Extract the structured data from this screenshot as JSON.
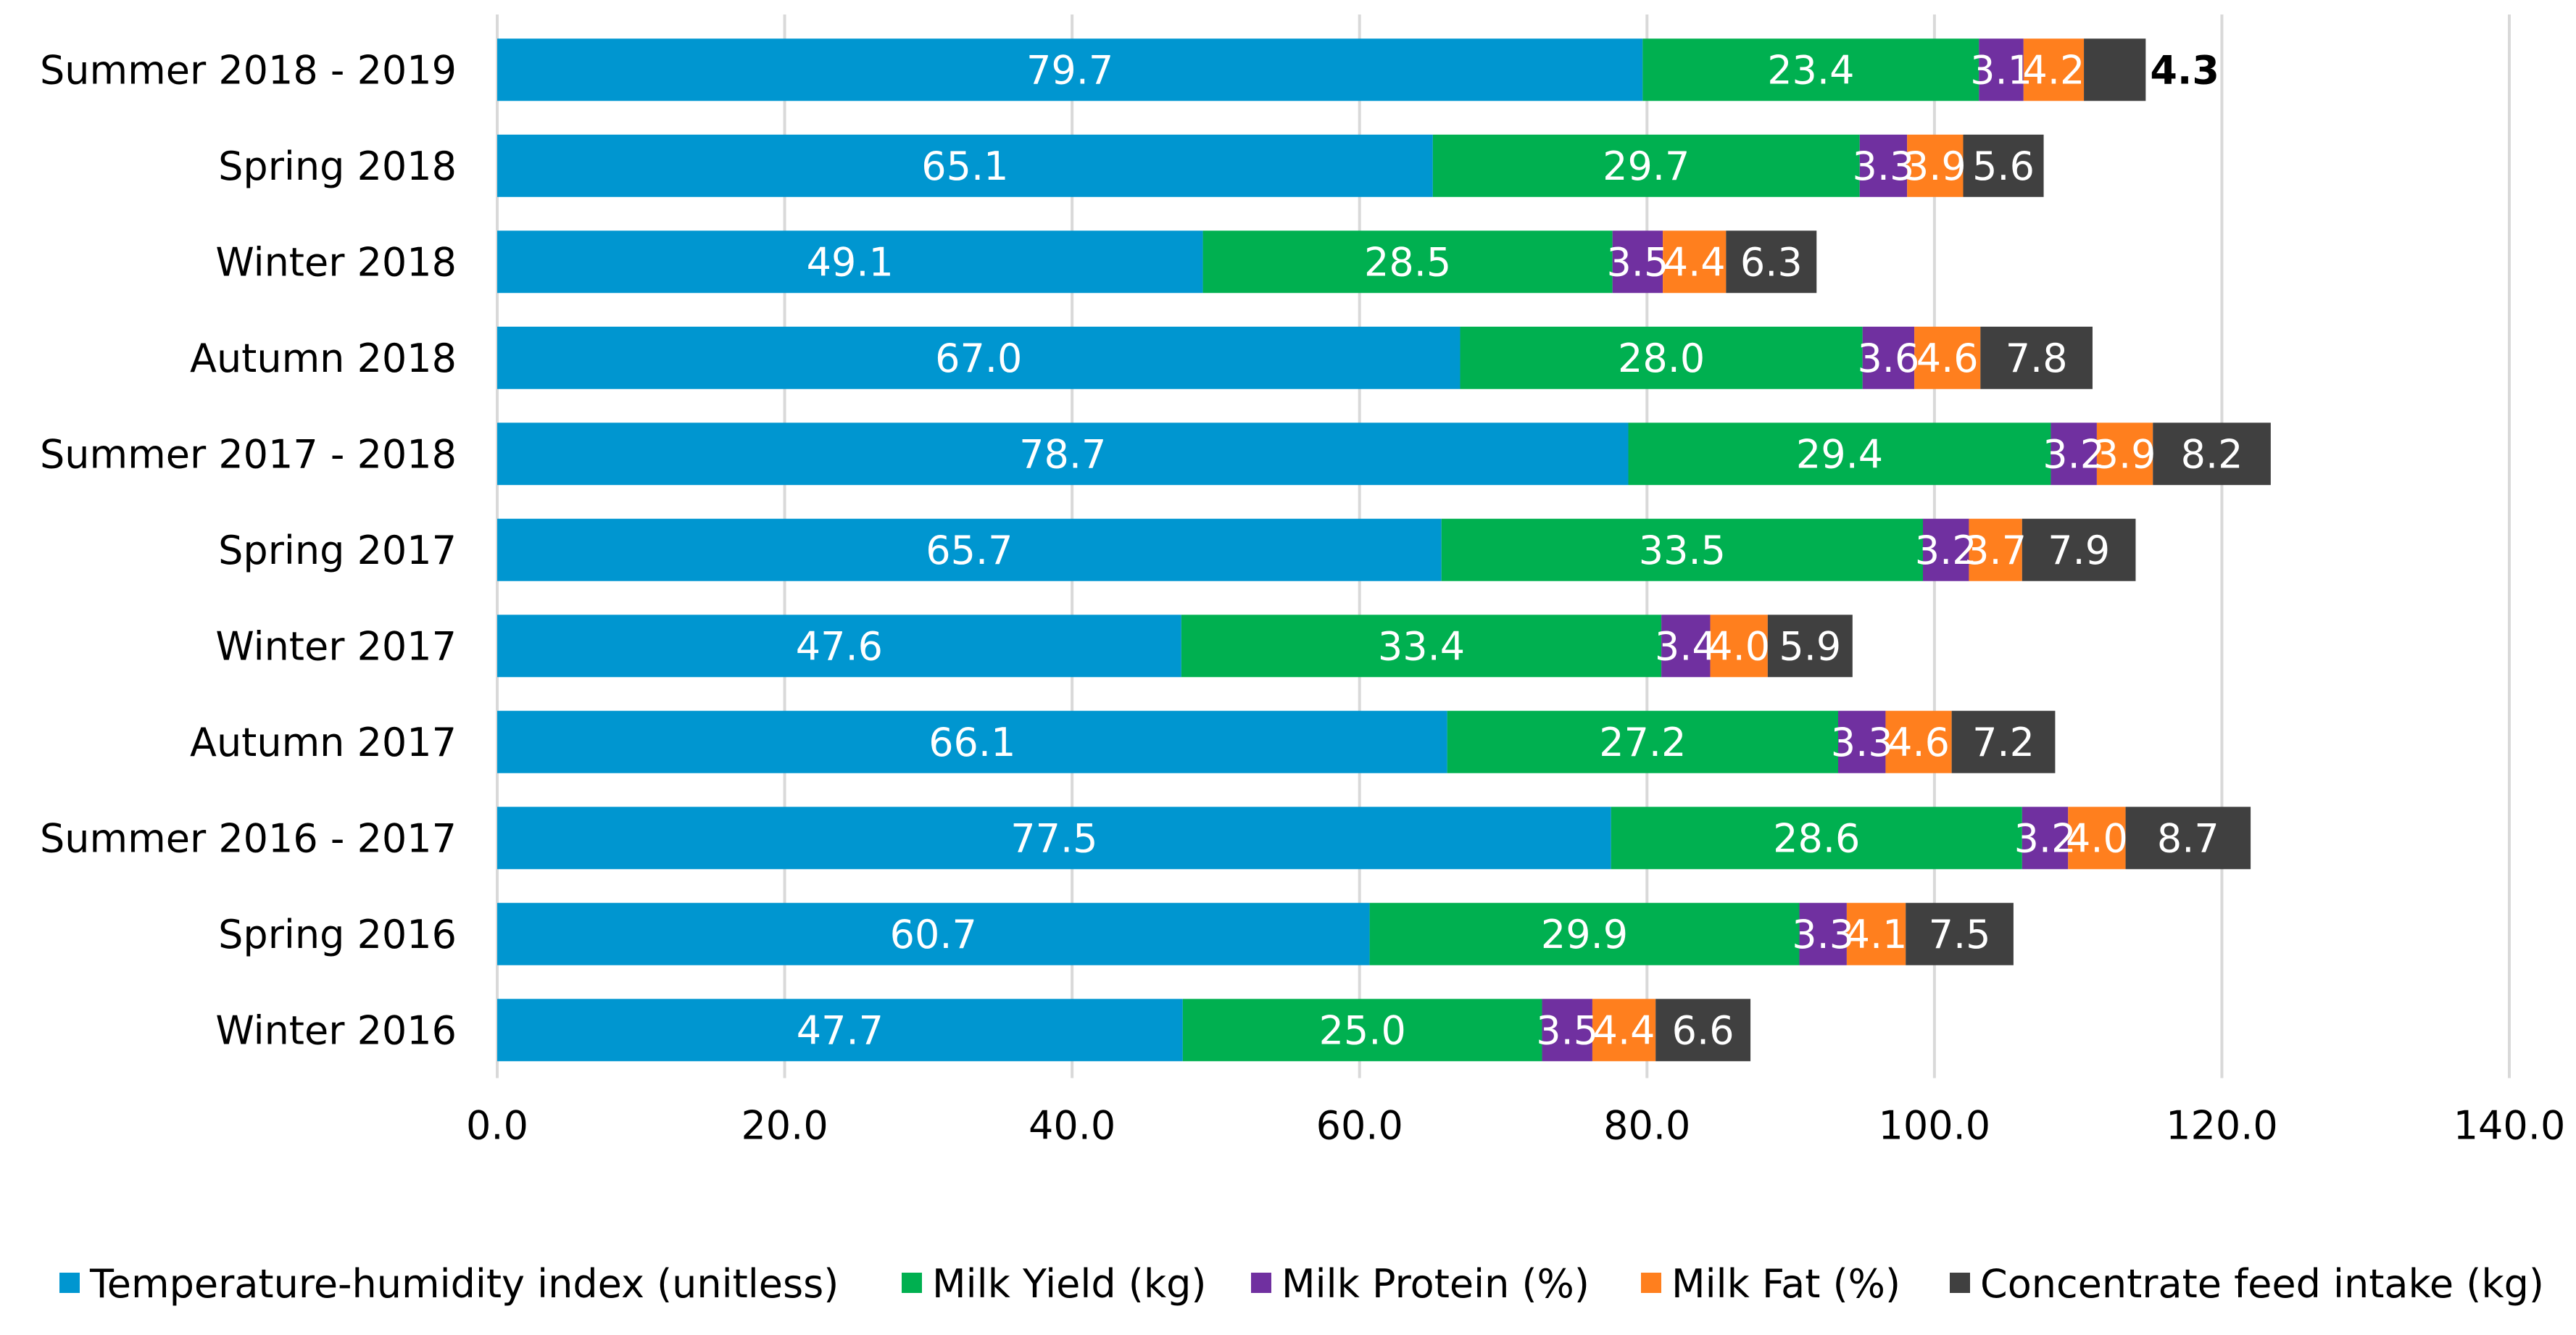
{
  "chart_data": {
    "type": "bar",
    "orientation": "horizontal",
    "stacked": true,
    "title": "",
    "xlabel": "",
    "ylabel": "",
    "xlim": [
      0,
      140
    ],
    "x_ticks": [
      "0.0",
      "20.0",
      "40.0",
      "60.0",
      "80.0",
      "100.0",
      "120.0",
      "140.0"
    ],
    "x_tick_values": [
      0,
      20,
      40,
      60,
      80,
      100,
      120,
      140
    ],
    "grid": "vertical",
    "legend_position": "bottom",
    "categories": [
      "Summer 2018 - 2019",
      "Spring 2018",
      "Winter 2018",
      "Autumn 2018",
      "Summer 2017 - 2018",
      "Spring 2017",
      "Winter 2017",
      "Autumn 2017",
      "Summer 2016 - 2017",
      "Spring 2016",
      "Winter 2016"
    ],
    "series": [
      {
        "name": "Temperature-humidity index (unitless)",
        "color": "#0096D0",
        "label_color": "#ffffff",
        "values": [
          79.7,
          65.1,
          49.1,
          67.0,
          78.7,
          65.7,
          47.6,
          66.1,
          77.5,
          60.7,
          47.7
        ],
        "labels": [
          "79.7",
          "65.1",
          "49.1",
          "67.0",
          "78.7",
          "65.7",
          "47.6",
          "66.1",
          "77.5",
          "60.7",
          "47.7"
        ]
      },
      {
        "name": "Milk Yield (kg)",
        "color": "#00B050",
        "label_color": "#ffffff",
        "values": [
          23.4,
          29.7,
          28.5,
          28.0,
          29.4,
          33.5,
          33.4,
          27.2,
          28.6,
          29.9,
          25.0
        ],
        "labels": [
          "23.4",
          "29.7",
          "28.5",
          "28.0",
          "29.4",
          "33.5",
          "33.4",
          "27.2",
          "28.6",
          "29.9",
          "25.0"
        ]
      },
      {
        "name": "Milk Protein (%)",
        "color": "#7030A0",
        "label_color": "#ffffff",
        "values": [
          3.1,
          3.3,
          3.5,
          3.6,
          3.2,
          3.2,
          3.4,
          3.3,
          3.2,
          3.3,
          3.5
        ],
        "labels": [
          "3.1",
          "3.3",
          "3.5",
          "3.6",
          "3.2",
          "3.2",
          "3.4",
          "3.3",
          "3.2",
          "3.3",
          "3.5"
        ]
      },
      {
        "name": "Milk Fat (%)",
        "color": "#FF7F1E",
        "label_color": "#ffffff",
        "values": [
          4.2,
          3.9,
          4.4,
          4.6,
          3.9,
          3.7,
          4.0,
          4.6,
          4.0,
          4.1,
          4.4
        ],
        "labels": [
          "4.2",
          "3.9",
          "4.4",
          "4.6",
          "3.9",
          "3.7",
          "4.0",
          "4.6",
          "4.0",
          "4.1",
          "4.4"
        ]
      },
      {
        "name": "Concentrate feed intake (kg)",
        "color": "#404040",
        "label_color": "#ffffff",
        "values": [
          4.3,
          5.6,
          6.3,
          7.8,
          8.2,
          7.9,
          5.9,
          7.2,
          8.7,
          7.5,
          6.6
        ],
        "labels": [
          "4.3",
          "5.6",
          "6.3",
          "7.8",
          "8.2",
          "7.9",
          "5.9",
          "7.2",
          "8.7",
          "7.5",
          "6.6"
        ],
        "outside_label_rows": [
          0
        ]
      }
    ]
  }
}
